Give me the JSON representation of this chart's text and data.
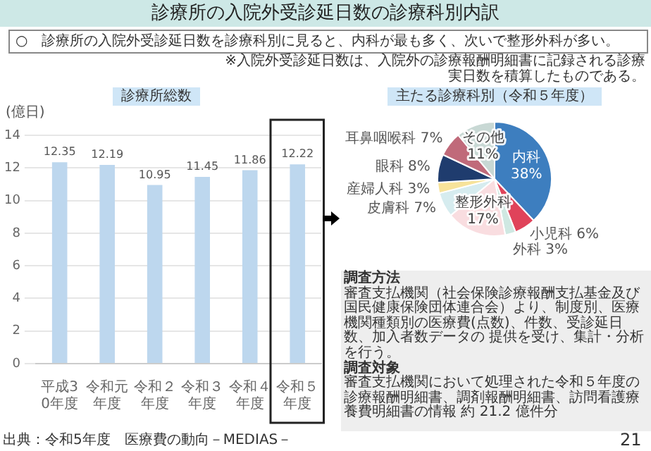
{
  "chart_data": [
    {
      "type": "bar",
      "title": "診療所総数",
      "ylabel": "(億日)",
      "categories": [
        "平成30年度",
        "令和元年度",
        "令和２年度",
        "令和３年度",
        "令和４年度",
        "令和５年度"
      ],
      "values": [
        12.35,
        12.19,
        10.95,
        11.45,
        11.86,
        12.22
      ],
      "color": "#bdd7ee",
      "ylim": [
        0,
        14
      ],
      "yticks": [
        0,
        2,
        4,
        6,
        8,
        10,
        12,
        14
      ],
      "grid": "y",
      "data_labels": true,
      "legend": false,
      "annotations": [
        "診療所の入院外受診延日数の診療科別内訳",
        "○　診療所の入院外受診延日数を診療科別に見ると、内科が最も多く、次いで整形外科が多い。",
        "※入院外受診延日数は、入院外の診療報酬明細書に記録される診療実日数を積算したものである。",
        "出典：令和5年度　医療費の動向－MEDIAS－",
        "21"
      ]
    },
    {
      "type": "pie",
      "title": "主たる診療科別（令和５年度）",
      "categories": [
        "内科",
        "小児科",
        "外科",
        "整形外科",
        "皮膚科",
        "産婦人科",
        "眼科",
        "耳鼻咽喉科",
        "その他"
      ],
      "values": [
        38,
        6,
        3,
        17,
        7,
        3,
        8,
        7,
        11
      ],
      "value_labels": [
        "38%",
        "6%",
        "3%",
        "17%",
        "7%",
        "3%",
        "8%",
        "7%",
        "11%"
      ],
      "colors": [
        "#3d7ebf",
        "#e0435a",
        "#cfe8e2",
        "#f9dde0",
        "#d6ecef",
        "#f7e39a",
        "#1f3c6e",
        "#c06a7a",
        "#c8d8d4"
      ],
      "legend": false,
      "annotations": [
        "調査方法",
        "審査支払機関（社会保険診療報酬支払基金及び国民健康保険団体連合会）より、制度別、医療機関種類別の医療費(点数)、件数、受診延日数、加入者数データの 提供を受け、集計・分析を行う。",
        "調査対象",
        "審査支払機関において処理された令和５年度の診療報酬明細書、調剤報酬明細書、訪問看護療養費明細書の情報 約 21.2 億件分"
      ]
    }
  ]
}
